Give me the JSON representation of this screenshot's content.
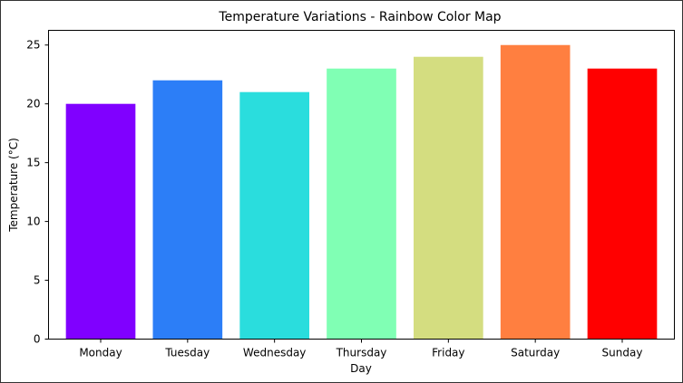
{
  "chart_data": {
    "type": "bar",
    "title": "Temperature Variations - Rainbow Color Map",
    "xlabel": "Day",
    "ylabel": "Temperature (°C)",
    "categories": [
      "Monday",
      "Tuesday",
      "Wednesday",
      "Thursday",
      "Friday",
      "Saturday",
      "Sunday"
    ],
    "values": [
      20,
      22,
      21,
      23,
      24,
      25,
      23
    ],
    "colors": [
      "#8000ff",
      "#2c7ef7",
      "#2adddd",
      "#80ffb4",
      "#d4dd80",
      "#ff7f40",
      "#ff0000"
    ],
    "ylim": [
      0,
      26.25
    ],
    "yticks": [
      0,
      5,
      10,
      15,
      20,
      25
    ],
    "grid": false,
    "legend": "none"
  }
}
